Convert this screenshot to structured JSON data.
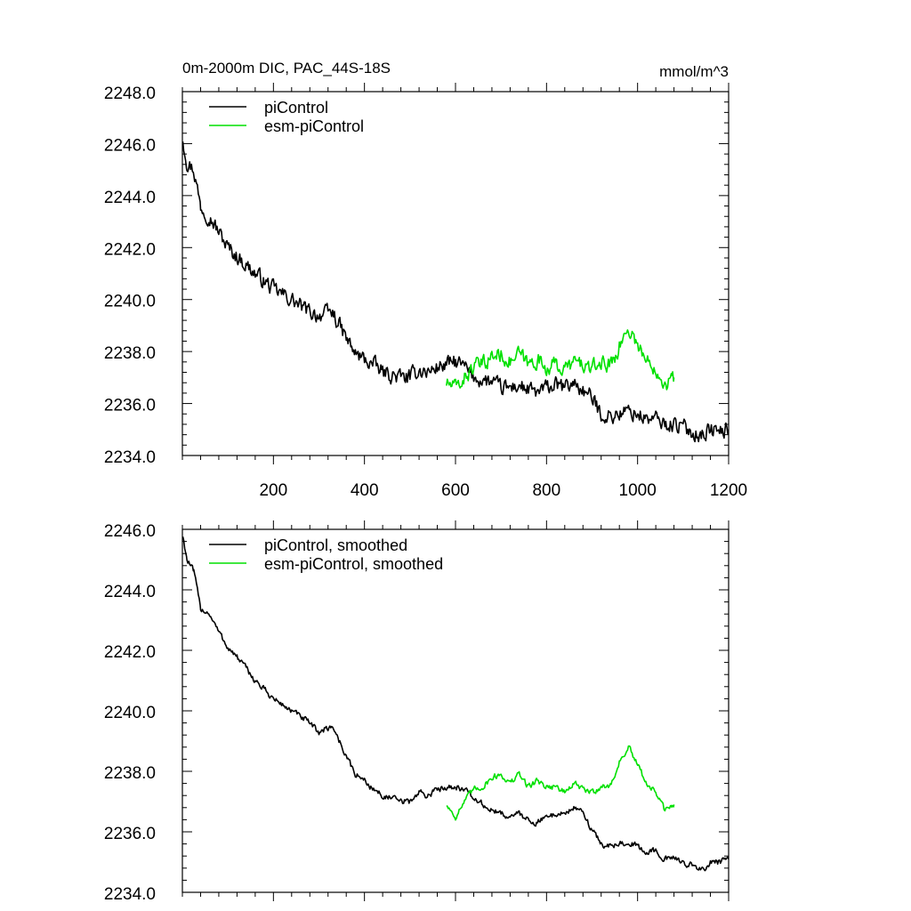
{
  "chart_data": [
    {
      "type": "line",
      "title": "0m-2000m DIC, PAC_44S-18S",
      "units_label": "mmol/m^3",
      "xlim": [
        0,
        1200
      ],
      "ylim": [
        2234.0,
        2248.0
      ],
      "x_ticks": [
        200,
        400,
        600,
        800,
        1000,
        1200
      ],
      "x_tick_labels": [
        "200",
        "400",
        "600",
        "800",
        "1000",
        "1200"
      ],
      "y_ticks": [
        2234.0,
        2236.0,
        2238.0,
        2240.0,
        2242.0,
        2244.0,
        2246.0,
        2248.0
      ],
      "y_tick_labels": [
        "2234.0",
        "2236.0",
        "2238.0",
        "2240.0",
        "2242.0",
        "2244.0",
        "2246.0",
        "2248.0"
      ],
      "legend_position": "top-left",
      "series": [
        {
          "name": "piControl",
          "color": "#000000",
          "points": [
            [
              1,
              2246.2
            ],
            [
              10,
              2245.3
            ],
            [
              25,
              2245.0
            ],
            [
              40,
              2243.6
            ],
            [
              60,
              2243.2
            ],
            [
              80,
              2242.6
            ],
            [
              100,
              2242.0
            ],
            [
              130,
              2241.5
            ],
            [
              160,
              2241.0
            ],
            [
              200,
              2240.4
            ],
            [
              240,
              2240.0
            ],
            [
              270,
              2239.6
            ],
            [
              300,
              2239.4
            ],
            [
              330,
              2239.5
            ],
            [
              360,
              2238.5
            ],
            [
              380,
              2237.9
            ],
            [
              400,
              2237.7
            ],
            [
              420,
              2237.5
            ],
            [
              440,
              2237.2
            ],
            [
              460,
              2237.1
            ],
            [
              480,
              2237.0
            ],
            [
              500,
              2237.0
            ],
            [
              520,
              2237.3
            ],
            [
              540,
              2237.2
            ],
            [
              560,
              2237.4
            ],
            [
              580,
              2237.5
            ],
            [
              600,
              2237.6
            ],
            [
              620,
              2237.4
            ],
            [
              640,
              2237.0
            ],
            [
              660,
              2236.9
            ],
            [
              680,
              2236.8
            ],
            [
              700,
              2236.6
            ],
            [
              720,
              2236.6
            ],
            [
              740,
              2236.7
            ],
            [
              760,
              2236.5
            ],
            [
              780,
              2236.4
            ],
            [
              800,
              2236.6
            ],
            [
              820,
              2236.7
            ],
            [
              840,
              2236.6
            ],
            [
              860,
              2236.8
            ],
            [
              880,
              2236.5
            ],
            [
              900,
              2236.2
            ],
            [
              920,
              2235.6
            ],
            [
              940,
              2235.5
            ],
            [
              960,
              2235.6
            ],
            [
              980,
              2235.7
            ],
            [
              1000,
              2235.6
            ],
            [
              1020,
              2235.4
            ],
            [
              1040,
              2235.4
            ],
            [
              1060,
              2235.2
            ],
            [
              1080,
              2235.2
            ],
            [
              1100,
              2235.1
            ],
            [
              1120,
              2234.9
            ],
            [
              1140,
              2234.8
            ],
            [
              1160,
              2235.0
            ],
            [
              1180,
              2234.9
            ],
            [
              1200,
              2235.0
            ]
          ],
          "noise": 0.35
        },
        {
          "name": "esm-piControl",
          "color": "#00e000",
          "points": [
            [
              580,
              2236.8
            ],
            [
              600,
              2236.6
            ],
            [
              620,
              2237.0
            ],
            [
              640,
              2237.4
            ],
            [
              660,
              2237.5
            ],
            [
              680,
              2237.8
            ],
            [
              700,
              2237.9
            ],
            [
              720,
              2237.6
            ],
            [
              740,
              2237.9
            ],
            [
              760,
              2237.5
            ],
            [
              780,
              2237.7
            ],
            [
              800,
              2237.4
            ],
            [
              820,
              2237.5
            ],
            [
              840,
              2237.3
            ],
            [
              860,
              2237.6
            ],
            [
              880,
              2237.5
            ],
            [
              900,
              2237.3
            ],
            [
              920,
              2237.6
            ],
            [
              940,
              2237.5
            ],
            [
              960,
              2238.2
            ],
            [
              980,
              2238.9
            ],
            [
              1000,
              2238.3
            ],
            [
              1020,
              2237.6
            ],
            [
              1040,
              2237.4
            ],
            [
              1060,
              2236.8
            ],
            [
              1075,
              2236.9
            ],
            [
              1080,
              2237.0
            ]
          ],
          "noise": 0.35
        }
      ]
    },
    {
      "type": "line",
      "title": "",
      "xlim": [
        0,
        1200
      ],
      "ylim": [
        2234.0,
        2246.0
      ],
      "x_ticks": [
        200,
        400,
        600,
        800,
        1000,
        1200
      ],
      "y_ticks": [
        2234.0,
        2236.0,
        2238.0,
        2240.0,
        2242.0,
        2244.0,
        2246.0
      ],
      "y_tick_labels": [
        "2234.0",
        "2236.0",
        "2238.0",
        "2240.0",
        "2242.0",
        "2244.0",
        "2246.0"
      ],
      "legend_position": "top-left",
      "series": [
        {
          "name": "piControl, smoothed",
          "color": "#000000",
          "points": [
            [
              1,
              2245.8
            ],
            [
              10,
              2245.0
            ],
            [
              25,
              2244.6
            ],
            [
              40,
              2243.4
            ],
            [
              60,
              2243.2
            ],
            [
              80,
              2242.6
            ],
            [
              100,
              2242.1
            ],
            [
              130,
              2241.6
            ],
            [
              160,
              2241.0
            ],
            [
              200,
              2240.4
            ],
            [
              240,
              2240.0
            ],
            [
              270,
              2239.7
            ],
            [
              300,
              2239.3
            ],
            [
              330,
              2239.5
            ],
            [
              360,
              2238.5
            ],
            [
              380,
              2237.9
            ],
            [
              400,
              2237.7
            ],
            [
              420,
              2237.4
            ],
            [
              440,
              2237.2
            ],
            [
              460,
              2237.1
            ],
            [
              480,
              2237.0
            ],
            [
              500,
              2237.0
            ],
            [
              520,
              2237.3
            ],
            [
              540,
              2237.2
            ],
            [
              560,
              2237.4
            ],
            [
              580,
              2237.5
            ],
            [
              600,
              2237.5
            ],
            [
              620,
              2237.4
            ],
            [
              640,
              2237.1
            ],
            [
              660,
              2236.9
            ],
            [
              680,
              2236.7
            ],
            [
              700,
              2236.6
            ],
            [
              720,
              2236.5
            ],
            [
              740,
              2236.6
            ],
            [
              760,
              2236.4
            ],
            [
              780,
              2236.3
            ],
            [
              800,
              2236.5
            ],
            [
              820,
              2236.6
            ],
            [
              840,
              2236.6
            ],
            [
              860,
              2236.8
            ],
            [
              880,
              2236.6
            ],
            [
              900,
              2236.1
            ],
            [
              920,
              2235.6
            ],
            [
              940,
              2235.5
            ],
            [
              960,
              2235.6
            ],
            [
              980,
              2235.7
            ],
            [
              1000,
              2235.5
            ],
            [
              1020,
              2235.3
            ],
            [
              1040,
              2235.4
            ],
            [
              1060,
              2235.1
            ],
            [
              1080,
              2235.1
            ],
            [
              1100,
              2235.0
            ],
            [
              1120,
              2234.9
            ],
            [
              1140,
              2234.7
            ],
            [
              1160,
              2235.0
            ],
            [
              1180,
              2235.0
            ],
            [
              1200,
              2235.1
            ]
          ],
          "noise": 0.12
        },
        {
          "name": "esm-piControl, smoothed",
          "color": "#00e000",
          "points": [
            [
              580,
              2236.9
            ],
            [
              600,
              2236.5
            ],
            [
              620,
              2237.0
            ],
            [
              640,
              2237.4
            ],
            [
              660,
              2237.5
            ],
            [
              680,
              2237.8
            ],
            [
              700,
              2237.9
            ],
            [
              720,
              2237.6
            ],
            [
              740,
              2237.9
            ],
            [
              760,
              2237.5
            ],
            [
              780,
              2237.7
            ],
            [
              800,
              2237.5
            ],
            [
              820,
              2237.5
            ],
            [
              840,
              2237.3
            ],
            [
              860,
              2237.6
            ],
            [
              880,
              2237.4
            ],
            [
              900,
              2237.3
            ],
            [
              920,
              2237.5
            ],
            [
              940,
              2237.5
            ],
            [
              960,
              2238.3
            ],
            [
              980,
              2238.8
            ],
            [
              1000,
              2238.2
            ],
            [
              1020,
              2237.6
            ],
            [
              1040,
              2237.3
            ],
            [
              1060,
              2236.7
            ],
            [
              1075,
              2236.8
            ],
            [
              1080,
              2236.9
            ]
          ],
          "noise": 0.12
        }
      ]
    }
  ]
}
